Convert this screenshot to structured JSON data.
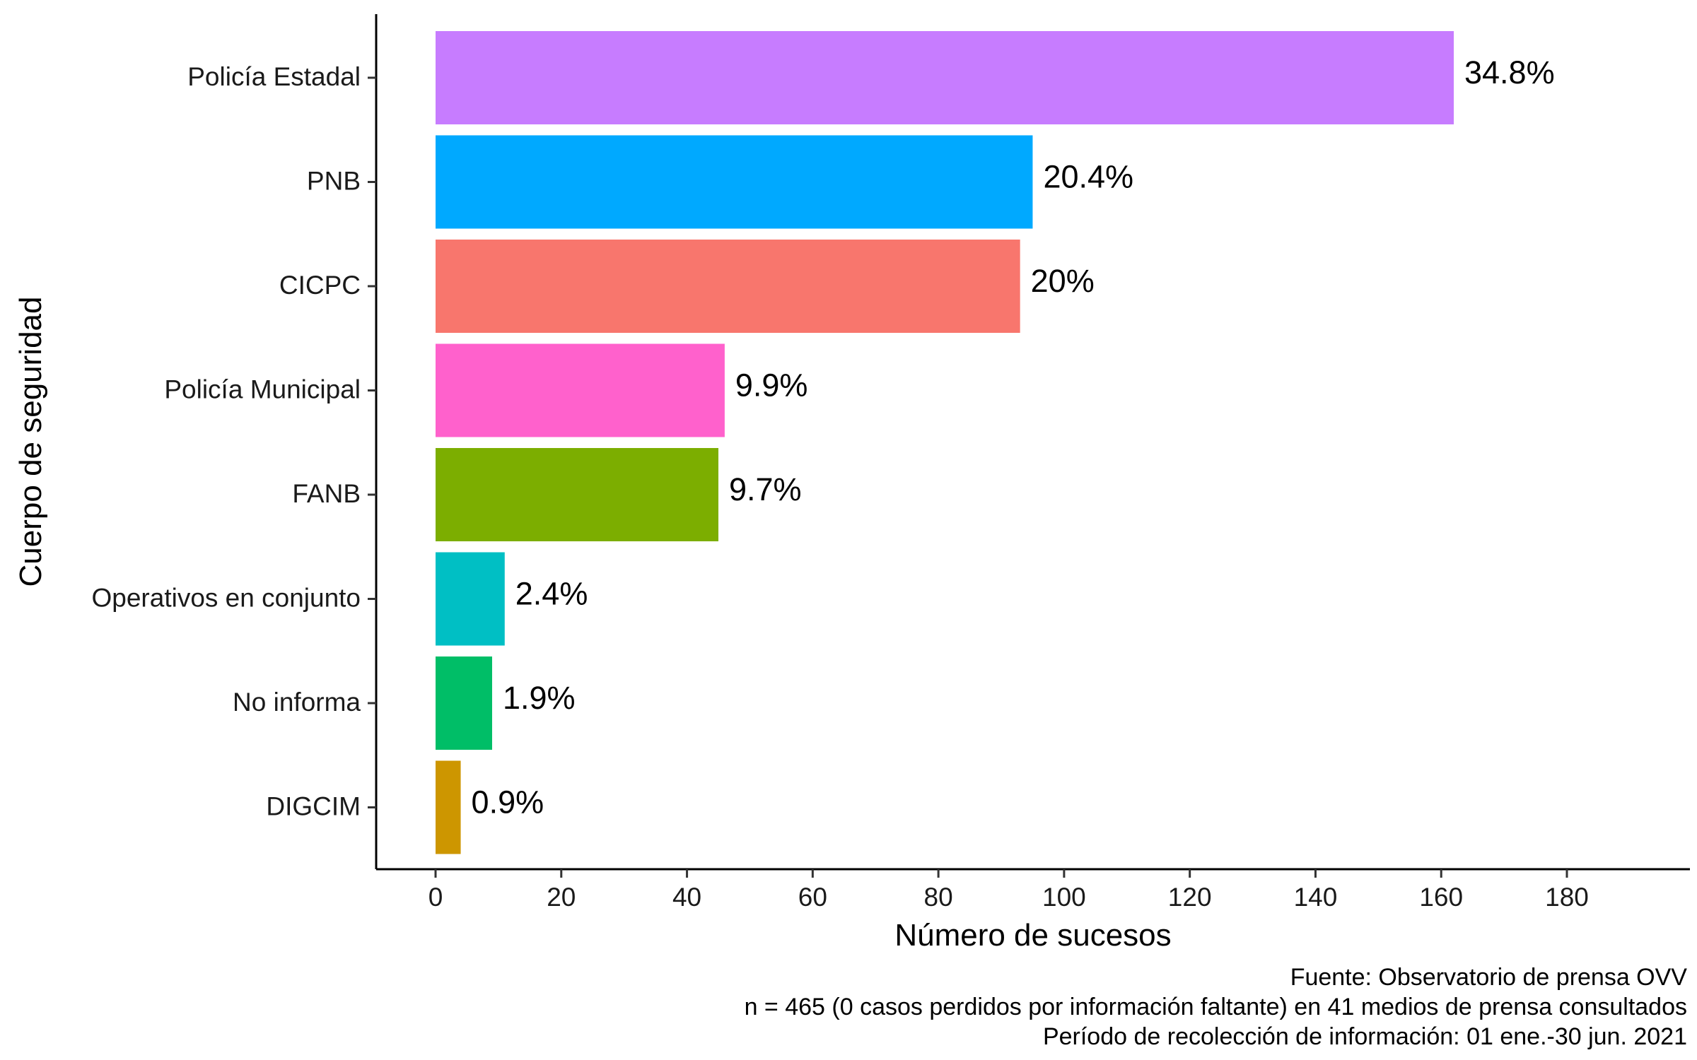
{
  "chart_data": {
    "type": "bar",
    "orientation": "horizontal",
    "categories": [
      "Policía Estadal",
      "PNB",
      "CICPC",
      "Policía Municipal",
      "FANB",
      "Operativos en conjunto",
      "No informa",
      "DIGCIM"
    ],
    "values": [
      162,
      95,
      93,
      46,
      45,
      11,
      9,
      4
    ],
    "data_labels": [
      "34.8%",
      "20.4%",
      "20%",
      "9.9%",
      "9.7%",
      "2.4%",
      "1.9%",
      "0.9%"
    ],
    "colors": [
      "#C77CFF",
      "#00A9FF",
      "#F8766D",
      "#FF61CC",
      "#7CAE00",
      "#00BFC4",
      "#00BE67",
      "#CD9600"
    ],
    "xlabel": "Número de sucesos",
    "ylabel": "Cuerpo de seguridad",
    "xticks": [
      "0",
      "20",
      "40",
      "60",
      "80",
      "100",
      "120",
      "140",
      "160",
      "180"
    ],
    "xlim": [
      -9.5,
      200
    ],
    "grid": false,
    "legend": "none",
    "caption": [
      "Fuente: Observatorio de prensa OVV",
      "n = 465 (0 casos perdidos por información faltante) en 41 medios de prensa consultados",
      "Período de recolección de información: 01 ene.-30 jun. 2021"
    ]
  }
}
